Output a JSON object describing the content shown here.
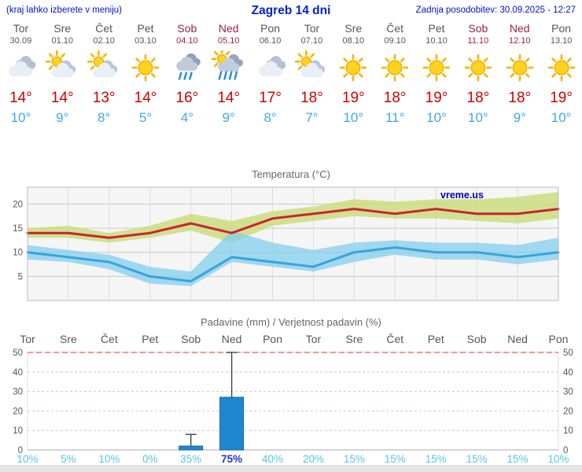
{
  "header": {
    "menu_note": "(kraj lahko izberete v meniju)",
    "title": "Zagreb 14 dni",
    "updated": "Zadnja posodobitev: 30.09.2025 - 12:27"
  },
  "colors": {
    "header_blue": "#0022cc",
    "weekday_text": "#565656",
    "weekend_text": "#992244",
    "tmax_red": "#d10000",
    "tmin_blue": "#3fa8e8",
    "probability_cyan": "#55c6e8",
    "probability_highlight": "#2236c8",
    "bar_blue": "#1e87d0"
  },
  "days": [
    {
      "name": "Tor",
      "date": "30.09",
      "weekend": false,
      "icon": "cloudy",
      "tmax": "14°",
      "tmin": "10°"
    },
    {
      "name": "Sre",
      "date": "01.10",
      "weekend": false,
      "icon": "partly-cloudy",
      "tmax": "14°",
      "tmin": "9°"
    },
    {
      "name": "Čet",
      "date": "02.10",
      "weekend": false,
      "icon": "partly-cloudy",
      "tmax": "13°",
      "tmin": "8°"
    },
    {
      "name": "Pet",
      "date": "03.10",
      "weekend": false,
      "icon": "sunny",
      "tmax": "14°",
      "tmin": "5°"
    },
    {
      "name": "Sob",
      "date": "04.10",
      "weekend": true,
      "icon": "rain",
      "tmax": "16°",
      "tmin": "4°"
    },
    {
      "name": "Ned",
      "date": "05.10",
      "weekend": true,
      "icon": "rain-sun",
      "tmax": "14°",
      "tmin": "9°"
    },
    {
      "name": "Pon",
      "date": "06.10",
      "weekend": false,
      "icon": "cloudy",
      "tmax": "17°",
      "tmin": "8°"
    },
    {
      "name": "Tor",
      "date": "07.10",
      "weekend": false,
      "icon": "partly-cloudy",
      "tmax": "18°",
      "tmin": "7°"
    },
    {
      "name": "Sre",
      "date": "08.10",
      "weekend": false,
      "icon": "sunny",
      "tmax": "19°",
      "tmin": "10°"
    },
    {
      "name": "Čet",
      "date": "09.10",
      "weekend": false,
      "icon": "sunny",
      "tmax": "18°",
      "tmin": "11°"
    },
    {
      "name": "Pet",
      "date": "10.10",
      "weekend": false,
      "icon": "sunny",
      "tmax": "19°",
      "tmin": "10°"
    },
    {
      "name": "Sob",
      "date": "11.10",
      "weekend": true,
      "icon": "sunny",
      "tmax": "18°",
      "tmin": "10°"
    },
    {
      "name": "Ned",
      "date": "12.10",
      "weekend": true,
      "icon": "sunny",
      "tmax": "18°",
      "tmin": "9°"
    },
    {
      "name": "Pon",
      "date": "13.10",
      "weekend": false,
      "icon": "sunny",
      "tmax": "19°",
      "tmin": "10°"
    }
  ],
  "chart_data": [
    {
      "type": "line",
      "title": "Temperatura (°C)",
      "watermark": "vreme.us",
      "x": [
        "Tor",
        "Sre",
        "Čet",
        "Pet",
        "Sob",
        "Ned",
        "Pon",
        "Tor",
        "Sre",
        "Čet",
        "Pet",
        "Sob",
        "Ned",
        "Pon"
      ],
      "ylim": [
        0,
        23.5
      ],
      "yticks": [
        5,
        10,
        15,
        20
      ],
      "grid": true,
      "legend": "none",
      "series": [
        {
          "name": "max-temperature",
          "color": "#cc2233",
          "values": [
            14,
            14,
            13,
            14,
            16,
            14,
            17,
            18,
            19,
            18,
            19,
            18,
            18,
            19
          ]
        },
        {
          "name": "min-temperature",
          "color": "#3aa3dd",
          "values": [
            10,
            9,
            8,
            5,
            4,
            9,
            8,
            7,
            10,
            11,
            10,
            10,
            9,
            10
          ]
        }
      ],
      "bands": [
        {
          "name": "max-range",
          "color": "#cadd7e",
          "opacity": 0.85,
          "upper": [
            15,
            15.5,
            14,
            15.5,
            18,
            16.5,
            18.5,
            19.5,
            21,
            20.5,
            21,
            21,
            21.5,
            22.5
          ],
          "lower": [
            13,
            13,
            12,
            13,
            14.5,
            12,
            15.5,
            16.5,
            17.5,
            17,
            17,
            16.5,
            16,
            17
          ]
        },
        {
          "name": "min-range",
          "color": "#7fcdee",
          "opacity": 0.72,
          "upper": [
            11.5,
            10.5,
            9.5,
            7,
            6,
            14.5,
            12,
            10.5,
            12,
            12.5,
            12,
            12,
            11.5,
            13
          ],
          "lower": [
            8.5,
            8,
            6.5,
            3.5,
            3,
            8,
            7,
            6,
            8,
            9.5,
            8.5,
            8.5,
            7.5,
            8.5
          ]
        }
      ]
    },
    {
      "type": "bar",
      "title": "Padavine (mm) / Verjetnost padavin (%)",
      "x": [
        "Tor",
        "Sre",
        "Čet",
        "Pet",
        "Sob",
        "Ned",
        "Pon",
        "Tor",
        "Sre",
        "Čet",
        "Pet",
        "Sob",
        "Ned",
        "Pon"
      ],
      "ylim": [
        0,
        50
      ],
      "yticks": [
        0,
        10,
        20,
        30,
        40,
        50
      ],
      "top_line_value": 50,
      "bar_color": "#1e87d0",
      "values_mm": [
        0,
        0,
        0,
        0,
        2,
        27,
        0,
        0,
        0,
        0,
        0,
        0,
        0,
        0
      ],
      "whisker_mm": [
        0,
        0,
        0,
        0,
        8,
        50,
        0,
        0,
        0,
        0,
        0,
        0,
        0,
        0
      ],
      "probabilities": [
        "10%",
        "5%",
        "10%",
        "0%",
        "35%",
        "75%",
        "40%",
        "20%",
        "15%",
        "15%",
        "15%",
        "15%",
        "15%",
        "10%"
      ],
      "highlight_prob_index": 5
    }
  ]
}
